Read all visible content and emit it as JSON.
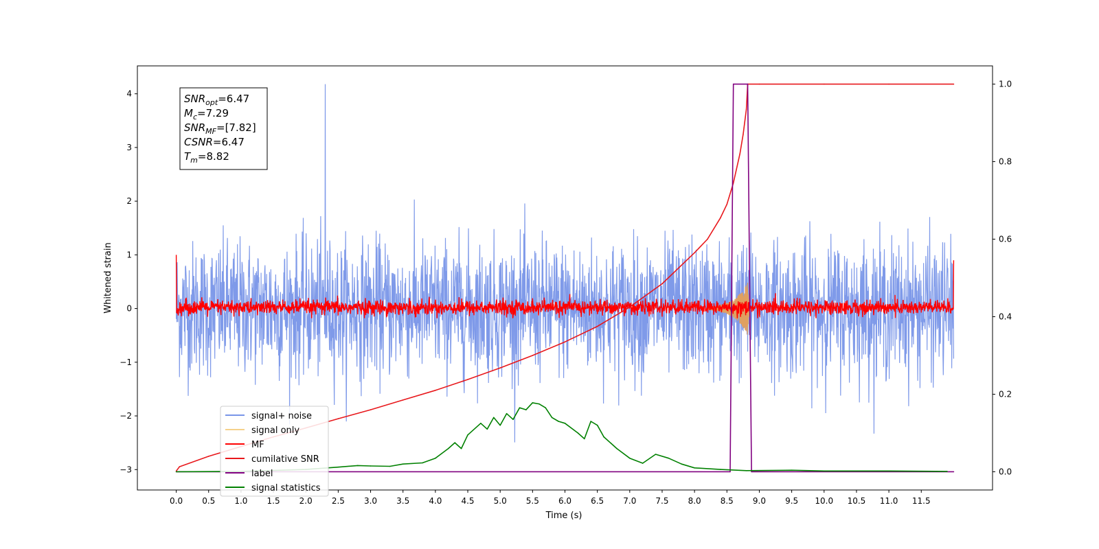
{
  "chart_data": {
    "type": "line",
    "xlabel": "Time (s)",
    "ylabel": "Whitened strain",
    "xlim": [
      -0.6,
      12.6
    ],
    "ylim": [
      -3.38,
      4.52
    ],
    "y2lim": [
      -0.047,
      1.047
    ],
    "x_ticks": [
      "0.0",
      "0.5",
      "1.0",
      "1.5",
      "2.0",
      "2.5",
      "3.0",
      "3.5",
      "4.0",
      "4.5",
      "5.0",
      "5.5",
      "6.0",
      "6.5",
      "7.0",
      "7.5",
      "8.0",
      "8.5",
      "9.0",
      "9.5",
      "10.0",
      "10.5",
      "11.0",
      "11.5"
    ],
    "y_ticks": [
      "−3",
      "−2",
      "−1",
      "0",
      "1",
      "2",
      "3",
      "4"
    ],
    "y2_ticks": [
      "0.0",
      "0.2",
      "0.4",
      "0.6",
      "0.8",
      "1.0"
    ],
    "annotation": {
      "lines": [
        {
          "main": "SNR",
          "sub": "opt",
          "value": "=6.47"
        },
        {
          "main": "M",
          "sub": "c",
          "value": "=7.29"
        },
        {
          "main": "SNR",
          "sub": "MF",
          "value": "=[7.82]"
        },
        {
          "main": "CSNR",
          "sub": "",
          "value": "=6.47"
        },
        {
          "main": "T",
          "sub": "m",
          "value": "=8.82"
        }
      ]
    },
    "legend": {
      "position": "lower-left",
      "entries": [
        {
          "label": "signal+ noise",
          "color": "#7895e8"
        },
        {
          "label": "signal only",
          "color": "#f5d18a"
        },
        {
          "label": "MF",
          "color": "#ff0000"
        },
        {
          "label": "cumilative SNR",
          "color": "#e8171b"
        },
        {
          "label": "label",
          "color": "#800080"
        },
        {
          "label": "signal statistics",
          "color": "#008000"
        }
      ]
    },
    "series": [
      {
        "name": "signal+ noise",
        "axis": "left",
        "color": "#7895e8",
        "x_range": [
          0,
          12
        ],
        "amplitude_envelope": [
          -2.9,
          4.18
        ],
        "typical_band": [
          -1.6,
          2.3
        ],
        "note_peak": [
          2.3,
          4.18
        ]
      },
      {
        "name": "signal only",
        "axis": "left",
        "color": "#e0a060",
        "x_range": [
          8.2,
          8.9
        ],
        "chirp_peak_time": 8.82,
        "max_amplitude": 0.5
      },
      {
        "name": "MF",
        "axis": "left",
        "color": "#ff0000",
        "x_range": [
          0,
          12
        ],
        "band": [
          -0.18,
          0.3
        ]
      },
      {
        "name": "cumilative SNR",
        "axis": "right",
        "color": "#e8171b",
        "x": [
          0.0,
          0.05,
          0.5,
          1.0,
          1.5,
          2.0,
          2.5,
          3.0,
          3.5,
          4.0,
          4.5,
          5.0,
          5.5,
          6.0,
          6.5,
          7.0,
          7.5,
          8.0,
          8.2,
          8.4,
          8.5,
          8.6,
          8.7,
          8.75,
          8.8,
          8.82,
          9.0,
          10.0,
          11.0,
          12.0
        ],
        "y": [
          0.002,
          0.013,
          0.04,
          0.065,
          0.09,
          0.113,
          0.137,
          0.16,
          0.185,
          0.21,
          0.238,
          0.268,
          0.3,
          0.335,
          0.375,
          0.425,
          0.485,
          0.565,
          0.6,
          0.655,
          0.69,
          0.745,
          0.82,
          0.87,
          0.935,
          1.0,
          1.0,
          1.0,
          1.0,
          1.0
        ]
      },
      {
        "name": "label",
        "axis": "right",
        "color": "#800080",
        "x": [
          0.0,
          8.55,
          8.6,
          8.82,
          8.88,
          12.0
        ],
        "y": [
          0.0,
          0.0,
          1.0,
          1.0,
          0.0,
          0.0
        ]
      },
      {
        "name": "signal statistics",
        "axis": "right",
        "color": "#008000",
        "x": [
          0.0,
          1.0,
          2.0,
          2.5,
          2.8,
          3.0,
          3.3,
          3.5,
          3.8,
          4.0,
          4.2,
          4.3,
          4.4,
          4.5,
          4.7,
          4.8,
          4.9,
          5.0,
          5.1,
          5.2,
          5.3,
          5.4,
          5.5,
          5.6,
          5.7,
          5.8,
          5.9,
          6.0,
          6.2,
          6.3,
          6.4,
          6.5,
          6.6,
          6.8,
          7.0,
          7.2,
          7.4,
          7.6,
          7.8,
          8.0,
          8.4,
          8.8,
          9.5,
          10.0,
          11.0,
          11.9
        ],
        "y": [
          0.0,
          0.001,
          0.006,
          0.012,
          0.016,
          0.015,
          0.014,
          0.02,
          0.023,
          0.035,
          0.06,
          0.075,
          0.06,
          0.095,
          0.125,
          0.11,
          0.14,
          0.12,
          0.15,
          0.135,
          0.165,
          0.16,
          0.178,
          0.175,
          0.165,
          0.14,
          0.13,
          0.125,
          0.1,
          0.085,
          0.13,
          0.12,
          0.09,
          0.06,
          0.035,
          0.022,
          0.045,
          0.035,
          0.02,
          0.01,
          0.006,
          0.003,
          0.004,
          0.002,
          0.002,
          0.001
        ]
      }
    ]
  }
}
